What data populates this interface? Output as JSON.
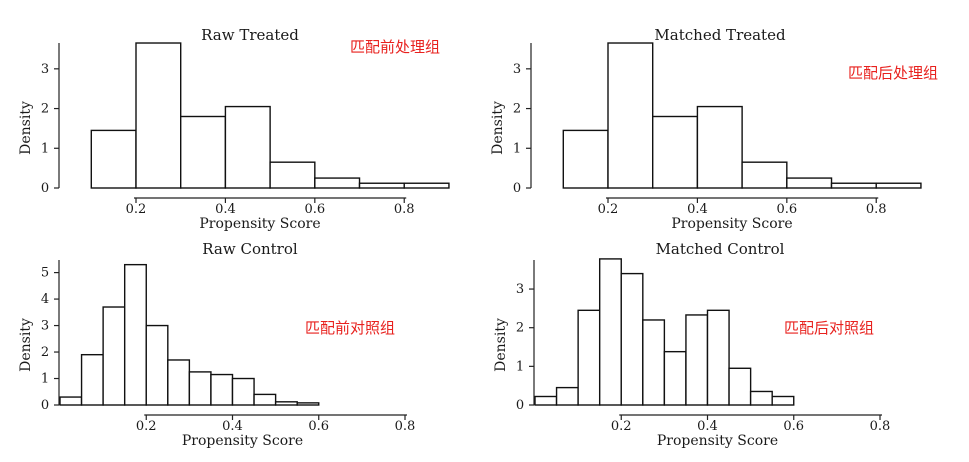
{
  "colors": {
    "annotation": "#e8211e",
    "bar_fill": "#ffffff",
    "bar_stroke": "#111111",
    "axis": "#222222"
  },
  "chart_data": [
    {
      "type": "bar",
      "title": "Raw Treated",
      "xlabel": "Propensity Score",
      "ylabel": "Density",
      "annotation": "匹配前处理组",
      "xlim": [
        0.03,
        0.88
      ],
      "ylim": [
        0,
        3.6
      ],
      "xticks": [
        "0.2",
        "0.4",
        "0.6",
        "0.8"
      ],
      "yticks": [
        "0",
        "1",
        "2",
        "3"
      ],
      "bins": [
        {
          "x0": 0.1,
          "x1": 0.2,
          "value": 1.45
        },
        {
          "x0": 0.2,
          "x1": 0.3,
          "value": 3.65
        },
        {
          "x0": 0.3,
          "x1": 0.4,
          "value": 1.8
        },
        {
          "x0": 0.4,
          "x1": 0.5,
          "value": 2.05
        },
        {
          "x0": 0.5,
          "x1": 0.6,
          "value": 0.65
        },
        {
          "x0": 0.6,
          "x1": 0.7,
          "value": 0.25
        },
        {
          "x0": 0.7,
          "x1": 0.8,
          "value": 0.12
        },
        {
          "x0": 0.8,
          "x1": 0.9,
          "value": 0.12
        }
      ]
    },
    {
      "type": "bar",
      "title": "Matched Treated",
      "xlabel": "Propensity Score",
      "ylabel": "Density",
      "annotation": "匹配后处理组",
      "xlim": [
        0.03,
        0.88
      ],
      "ylim": [
        0,
        3.6
      ],
      "xticks": [
        "0.2",
        "0.4",
        "0.6",
        "0.8"
      ],
      "yticks": [
        "0",
        "1",
        "2",
        "3"
      ],
      "bins": [
        {
          "x0": 0.1,
          "x1": 0.2,
          "value": 1.45
        },
        {
          "x0": 0.2,
          "x1": 0.3,
          "value": 3.65
        },
        {
          "x0": 0.3,
          "x1": 0.4,
          "value": 1.8
        },
        {
          "x0": 0.4,
          "x1": 0.5,
          "value": 2.05
        },
        {
          "x0": 0.5,
          "x1": 0.6,
          "value": 0.65
        },
        {
          "x0": 0.6,
          "x1": 0.7,
          "value": 0.25
        },
        {
          "x0": 0.7,
          "x1": 0.8,
          "value": 0.12
        },
        {
          "x0": 0.8,
          "x1": 0.9,
          "value": 0.12
        }
      ]
    },
    {
      "type": "bar",
      "title": "Raw Control",
      "xlabel": "Propensity Score",
      "ylabel": "Density",
      "annotation": "匹配前对照组",
      "xlim": [
        0.0,
        0.8
      ],
      "ylim": [
        0,
        5.4
      ],
      "xticks": [
        "0.2",
        "0.4",
        "0.6",
        "0.8"
      ],
      "yticks": [
        "0",
        "1",
        "2",
        "3",
        "4",
        "5"
      ],
      "bins": [
        {
          "x0": 0.0,
          "x1": 0.05,
          "value": 0.3
        },
        {
          "x0": 0.05,
          "x1": 0.1,
          "value": 1.9
        },
        {
          "x0": 0.1,
          "x1": 0.15,
          "value": 3.7
        },
        {
          "x0": 0.15,
          "x1": 0.2,
          "value": 5.3
        },
        {
          "x0": 0.2,
          "x1": 0.25,
          "value": 3.0
        },
        {
          "x0": 0.25,
          "x1": 0.3,
          "value": 1.7
        },
        {
          "x0": 0.3,
          "x1": 0.35,
          "value": 1.25
        },
        {
          "x0": 0.35,
          "x1": 0.4,
          "value": 1.15
        },
        {
          "x0": 0.4,
          "x1": 0.45,
          "value": 1.0
        },
        {
          "x0": 0.45,
          "x1": 0.5,
          "value": 0.4
        },
        {
          "x0": 0.5,
          "x1": 0.55,
          "value": 0.12
        },
        {
          "x0": 0.55,
          "x1": 0.6,
          "value": 0.08
        }
      ]
    },
    {
      "type": "bar",
      "title": "Matched Control",
      "xlabel": "Propensity Score",
      "ylabel": "Density",
      "annotation": "匹配后对照组",
      "xlim": [
        0.0,
        0.8
      ],
      "ylim": [
        0,
        3.7
      ],
      "xticks": [
        "0.2",
        "0.4",
        "0.6",
        "0.8"
      ],
      "yticks": [
        "0",
        "1",
        "2",
        "3"
      ],
      "bins": [
        {
          "x0": 0.0,
          "x1": 0.05,
          "value": 0.22
        },
        {
          "x0": 0.05,
          "x1": 0.1,
          "value": 0.45
        },
        {
          "x0": 0.1,
          "x1": 0.15,
          "value": 2.45
        },
        {
          "x0": 0.15,
          "x1": 0.2,
          "value": 3.78
        },
        {
          "x0": 0.2,
          "x1": 0.25,
          "value": 3.4
        },
        {
          "x0": 0.25,
          "x1": 0.3,
          "value": 2.2
        },
        {
          "x0": 0.3,
          "x1": 0.35,
          "value": 1.38
        },
        {
          "x0": 0.35,
          "x1": 0.4,
          "value": 2.33
        },
        {
          "x0": 0.4,
          "x1": 0.45,
          "value": 2.45
        },
        {
          "x0": 0.45,
          "x1": 0.5,
          "value": 0.95
        },
        {
          "x0": 0.5,
          "x1": 0.55,
          "value": 0.35
        },
        {
          "x0": 0.55,
          "x1": 0.6,
          "value": 0.22
        }
      ]
    }
  ]
}
